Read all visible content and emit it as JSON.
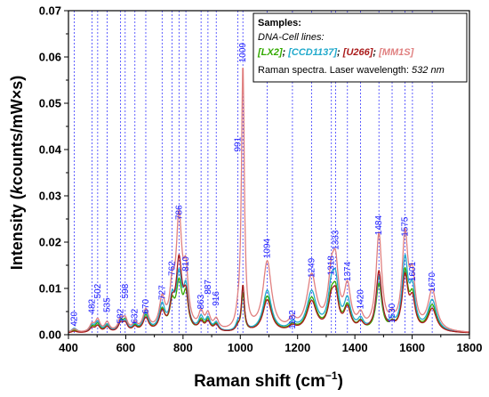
{
  "chart_data": {
    "type": "line",
    "xlabel": "Raman shift (cm",
    "xlabel_sup": "−1",
    "xlabel_end": ")",
    "ylabel_parts": [
      "Intensity (",
      "k",
      "counts/mW×s)"
    ],
    "xlim": [
      400,
      1800
    ],
    "ylim": [
      0,
      0.07
    ],
    "x_ticks": [
      "400",
      "600",
      "800",
      "1000",
      "1200",
      "1400",
      "1600",
      "1800"
    ],
    "y_ticks": [
      "0.00",
      "0.01",
      "0.02",
      "0.03",
      "0.04",
      "0.05",
      "0.06",
      "0.07"
    ],
    "legend": {
      "title": "Samples:",
      "subtitle": "DNA-Cell lines:",
      "entries": [
        {
          "label": "[LX2]",
          "color": "#33aa00"
        },
        {
          "label": "[CCD1137]",
          "color": "#22aacc"
        },
        {
          "label": "[U266]",
          "color": "#aa1a1a"
        },
        {
          "label": "[MM1S]",
          "color": "#e08080"
        }
      ],
      "separator": ";",
      "footer_prefix": "Raman spectra. Laser wavelength: ",
      "footer_value": "532 nm",
      "placement": "top-right"
    },
    "peak_lines": [
      420,
      482,
      502,
      535,
      582,
      598,
      632,
      670,
      727,
      762,
      786,
      810,
      863,
      887,
      916,
      991,
      1009,
      1094,
      1182,
      1249,
      1318,
      1333,
      1374,
      1420,
      1484,
      1530,
      1575,
      1601,
      1670
    ],
    "peak_labels": [
      {
        "text": "420",
        "x": 420,
        "y": 0.0018
      },
      {
        "text": "482",
        "x": 482,
        "y": 0.0045
      },
      {
        "text": "502",
        "x": 502,
        "y": 0.0078
      },
      {
        "text": "535",
        "x": 535,
        "y": 0.0048
      },
      {
        "text": "582",
        "x": 582,
        "y": 0.0024
      },
      {
        "text": "598",
        "x": 598,
        "y": 0.0078
      },
      {
        "text": "632",
        "x": 632,
        "y": 0.0024
      },
      {
        "text": "670",
        "x": 670,
        "y": 0.0045
      },
      {
        "text": "727",
        "x": 727,
        "y": 0.0075
      },
      {
        "text": "762",
        "x": 762,
        "y": 0.0127
      },
      {
        "text": "786",
        "x": 786,
        "y": 0.0248
      },
      {
        "text": "810",
        "x": 810,
        "y": 0.0137
      },
      {
        "text": "863",
        "x": 863,
        "y": 0.0055
      },
      {
        "text": "887",
        "x": 887,
        "y": 0.0087
      },
      {
        "text": "916",
        "x": 916,
        "y": 0.0062
      },
      {
        "text": "991",
        "x": 991,
        "y": 0.0395
      },
      {
        "text": "1009",
        "x": 1009,
        "y": 0.0588
      },
      {
        "text": "1094",
        "x": 1094,
        "y": 0.0165
      },
      {
        "text": "1182",
        "x": 1182,
        "y": 0.0012
      },
      {
        "text": "1249",
        "x": 1249,
        "y": 0.0123
      },
      {
        "text": "1318",
        "x": 1318,
        "y": 0.0128
      },
      {
        "text": "1333",
        "x": 1333,
        "y": 0.0183
      },
      {
        "text": "1374",
        "x": 1374,
        "y": 0.0115
      },
      {
        "text": "1420",
        "x": 1420,
        "y": 0.0055
      },
      {
        "text": "1484",
        "x": 1484,
        "y": 0.0215
      },
      {
        "text": "1530",
        "x": 1530,
        "y": 0.0025
      },
      {
        "text": "1575",
        "x": 1575,
        "y": 0.0212
      },
      {
        "text": "1601",
        "x": 1601,
        "y": 0.0115
      },
      {
        "text": "1670",
        "x": 1670,
        "y": 0.0092
      }
    ],
    "series": [
      {
        "color": "#33aa00",
        "peaks": [
          [
            420,
            0.0006,
            12
          ],
          [
            482,
            0.0012,
            10
          ],
          [
            502,
            0.0018,
            10
          ],
          [
            535,
            0.0015,
            10
          ],
          [
            582,
            0.0022,
            10
          ],
          [
            598,
            0.0022,
            10
          ],
          [
            632,
            0.0012,
            10
          ],
          [
            670,
            0.0035,
            12
          ],
          [
            727,
            0.0045,
            12
          ],
          [
            762,
            0.0052,
            10
          ],
          [
            786,
            0.0098,
            12
          ],
          [
            810,
            0.0072,
            10
          ],
          [
            863,
            0.0022,
            10
          ],
          [
            887,
            0.0024,
            10
          ],
          [
            916,
            0.0016,
            10
          ],
          [
            991,
            0.0012,
            8
          ],
          [
            1009,
            0.0082,
            6
          ],
          [
            1094,
            0.0078,
            18
          ],
          [
            1182,
            0.0012,
            15
          ],
          [
            1249,
            0.0072,
            20
          ],
          [
            1318,
            0.0065,
            14
          ],
          [
            1333,
            0.0068,
            12
          ],
          [
            1374,
            0.0052,
            14
          ],
          [
            1420,
            0.0018,
            12
          ],
          [
            1484,
            0.0102,
            12
          ],
          [
            1530,
            0.0012,
            10
          ],
          [
            1575,
            0.0125,
            12
          ],
          [
            1601,
            0.0068,
            12
          ],
          [
            1670,
            0.0058,
            18
          ]
        ]
      },
      {
        "color": "#22aacc",
        "peaks": [
          [
            420,
            0.001,
            12
          ],
          [
            482,
            0.0014,
            10
          ],
          [
            502,
            0.0022,
            10
          ],
          [
            535,
            0.0016,
            10
          ],
          [
            582,
            0.002,
            10
          ],
          [
            598,
            0.002,
            10
          ],
          [
            632,
            0.0014,
            10
          ],
          [
            670,
            0.004,
            12
          ],
          [
            727,
            0.0055,
            12
          ],
          [
            762,
            0.006,
            10
          ],
          [
            786,
            0.0115,
            12
          ],
          [
            810,
            0.0085,
            10
          ],
          [
            863,
            0.0028,
            10
          ],
          [
            887,
            0.0026,
            10
          ],
          [
            916,
            0.0018,
            10
          ],
          [
            991,
            0.0016,
            8
          ],
          [
            1009,
            0.0095,
            6
          ],
          [
            1094,
            0.009,
            18
          ],
          [
            1182,
            0.0016,
            15
          ],
          [
            1249,
            0.0085,
            20
          ],
          [
            1318,
            0.0082,
            14
          ],
          [
            1333,
            0.0085,
            12
          ],
          [
            1374,
            0.0064,
            14
          ],
          [
            1420,
            0.0022,
            12
          ],
          [
            1484,
            0.0115,
            12
          ],
          [
            1530,
            0.0016,
            10
          ],
          [
            1575,
            0.015,
            12
          ],
          [
            1601,
            0.0082,
            12
          ],
          [
            1670,
            0.0068,
            18
          ]
        ]
      },
      {
        "color": "#aa1a1a",
        "peaks": [
          [
            420,
            0.0004,
            12
          ],
          [
            482,
            0.001,
            10
          ],
          [
            502,
            0.0014,
            10
          ],
          [
            535,
            0.0012,
            10
          ],
          [
            582,
            0.0018,
            10
          ],
          [
            598,
            0.0018,
            10
          ],
          [
            632,
            0.001,
            10
          ],
          [
            670,
            0.003,
            12
          ],
          [
            727,
            0.004,
            12
          ],
          [
            762,
            0.0048,
            10
          ],
          [
            786,
            0.015,
            12
          ],
          [
            810,
            0.0068,
            10
          ],
          [
            863,
            0.0018,
            10
          ],
          [
            887,
            0.002,
            10
          ],
          [
            916,
            0.0014,
            10
          ],
          [
            991,
            0.0008,
            8
          ],
          [
            1009,
            0.01,
            6
          ],
          [
            1094,
            0.007,
            18
          ],
          [
            1182,
            0.001,
            15
          ],
          [
            1249,
            0.0065,
            20
          ],
          [
            1318,
            0.006,
            14
          ],
          [
            1333,
            0.0062,
            12
          ],
          [
            1374,
            0.0048,
            14
          ],
          [
            1420,
            0.0016,
            12
          ],
          [
            1484,
            0.013,
            12
          ],
          [
            1530,
            0.001,
            10
          ],
          [
            1575,
            0.0115,
            12
          ],
          [
            1601,
            0.0062,
            12
          ],
          [
            1670,
            0.005,
            18
          ]
        ]
      },
      {
        "color": "#e08080",
        "peaks": [
          [
            420,
            0.0008,
            12
          ],
          [
            482,
            0.0016,
            10
          ],
          [
            502,
            0.0026,
            10
          ],
          [
            535,
            0.002,
            10
          ],
          [
            582,
            0.0025,
            10
          ],
          [
            598,
            0.0025,
            10
          ],
          [
            632,
            0.0016,
            10
          ],
          [
            670,
            0.0045,
            12
          ],
          [
            727,
            0.0065,
            12
          ],
          [
            762,
            0.0075,
            10
          ],
          [
            786,
            0.0235,
            12
          ],
          [
            810,
            0.011,
            10
          ],
          [
            863,
            0.0035,
            10
          ],
          [
            887,
            0.0032,
            10
          ],
          [
            916,
            0.0022,
            10
          ],
          [
            991,
            0.002,
            8
          ],
          [
            1009,
            0.0575,
            6
          ],
          [
            1094,
            0.015,
            18
          ],
          [
            1182,
            0.002,
            15
          ],
          [
            1249,
            0.0118,
            20
          ],
          [
            1318,
            0.0105,
            14
          ],
          [
            1333,
            0.011,
            12
          ],
          [
            1374,
            0.009,
            14
          ],
          [
            1420,
            0.0028,
            12
          ],
          [
            1484,
            0.0208,
            12
          ],
          [
            1530,
            0.002,
            10
          ],
          [
            1575,
            0.02,
            12
          ],
          [
            1601,
            0.0105,
            12
          ],
          [
            1670,
            0.0088,
            18
          ]
        ]
      }
    ]
  }
}
